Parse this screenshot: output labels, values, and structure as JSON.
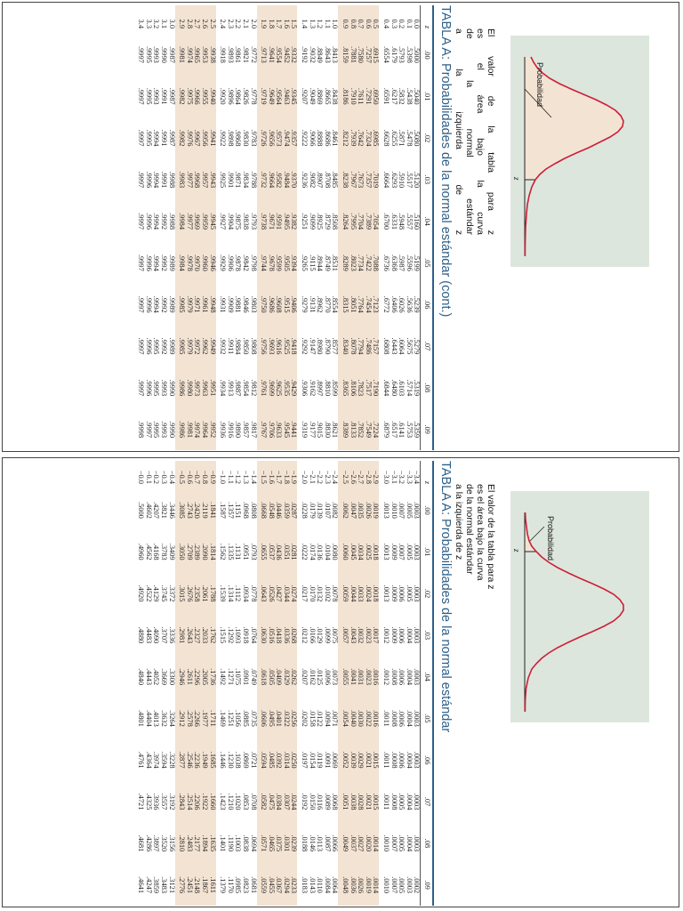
{
  "left": {
    "title_prefix": "TABLA A:",
    "title_main": "Probabilidades de la normal estándar",
    "desc": [
      "El valor de la tabla para z",
      "es el área bajo la curva",
      "de la normal estándar",
      "a la izquierda de z"
    ],
    "graph_prob_label": "Probabilidad",
    "graph_z_label": "z",
    "header": [
      "z",
      ".00",
      ".01",
      ".02",
      ".03",
      ".04",
      ".05",
      ".06",
      ".07",
      ".08",
      ".09"
    ],
    "rows": [
      [
        "−3.4",
        ".0003",
        ".0003",
        ".0003",
        ".0003",
        ".0003",
        ".0003",
        ".0003",
        ".0003",
        ".0003",
        ".0002"
      ],
      [
        "−3.3",
        ".0005",
        ".0005",
        ".0005",
        ".0004",
        ".0004",
        ".0004",
        ".0004",
        ".0004",
        ".0004",
        ".0003"
      ],
      [
        "−3.2",
        ".0007",
        ".0007",
        ".0006",
        ".0006",
        ".0006",
        ".0006",
        ".0006",
        ".0005",
        ".0005",
        ".0005"
      ],
      [
        "−3.1",
        ".0010",
        ".0009",
        ".0009",
        ".0009",
        ".0008",
        ".0008",
        ".0008",
        ".0008",
        ".0007",
        ".0007"
      ],
      [
        "−3.0",
        ".0013",
        ".0013",
        ".0013",
        ".0012",
        ".0012",
        ".0011",
        ".0011",
        ".0011",
        ".0010",
        ".0010"
      ],
      [
        "−2.9",
        ".0019",
        ".0018",
        ".0018",
        ".0017",
        ".0016",
        ".0016",
        ".0015",
        ".0015",
        ".0014",
        ".0014"
      ],
      [
        "−2.8",
        ".0026",
        ".0025",
        ".0024",
        ".0023",
        ".0023",
        ".0022",
        ".0021",
        ".0021",
        ".0020",
        ".0019"
      ],
      [
        "−2.7",
        ".0035",
        ".0034",
        ".0033",
        ".0032",
        ".0031",
        ".0030",
        ".0029",
        ".0028",
        ".0027",
        ".0026"
      ],
      [
        "−2.6",
        ".0047",
        ".0045",
        ".0044",
        ".0043",
        ".0041",
        ".0040",
        ".0039",
        ".0038",
        ".0037",
        ".0036"
      ],
      [
        "−2.5",
        ".0062",
        ".0060",
        ".0059",
        ".0057",
        ".0055",
        ".0054",
        ".0052",
        ".0051",
        ".0049",
        ".0048"
      ],
      [
        "−2.4",
        ".0082",
        ".0080",
        ".0078",
        ".0075",
        ".0073",
        ".0071",
        ".0069",
        ".0068",
        ".0066",
        ".0064"
      ],
      [
        "−2.3",
        ".0107",
        ".0104",
        ".0102",
        ".0099",
        ".0096",
        ".0094",
        ".0091",
        ".0089",
        ".0087",
        ".0084"
      ],
      [
        "−2.2",
        ".0139",
        ".0136",
        ".0132",
        ".0129",
        ".0125",
        ".0122",
        ".0119",
        ".0116",
        ".0113",
        ".0110"
      ],
      [
        "−2.1",
        ".0179",
        ".0174",
        ".0170",
        ".0166",
        ".0162",
        ".0158",
        ".0154",
        ".0150",
        ".0146",
        ".0143"
      ],
      [
        "−2.0",
        ".0228",
        ".0222",
        ".0217",
        ".0212",
        ".0207",
        ".0202",
        ".0197",
        ".0192",
        ".0188",
        ".0183"
      ],
      [
        "−1.9",
        ".0287",
        ".0281",
        ".0274",
        ".0268",
        ".0262",
        ".0256",
        ".0250",
        ".0244",
        ".0239",
        ".0233"
      ],
      [
        "−1.8",
        ".0359",
        ".0351",
        ".0344",
        ".0336",
        ".0329",
        ".0322",
        ".0314",
        ".0307",
        ".0301",
        ".0294"
      ],
      [
        "−1.7",
        ".0446",
        ".0436",
        ".0427",
        ".0418",
        ".0409",
        ".0401",
        ".0392",
        ".0384",
        ".0375",
        ".0367"
      ],
      [
        "−1.6",
        ".0548",
        ".0537",
        ".0526",
        ".0516",
        ".0505",
        ".0495",
        ".0485",
        ".0475",
        ".0465",
        ".0455"
      ],
      [
        "−1.5",
        ".0668",
        ".0655",
        ".0643",
        ".0630",
        ".0618",
        ".0606",
        ".0594",
        ".0582",
        ".0571",
        ".0559"
      ],
      [
        "−1.4",
        ".0808",
        ".0793",
        ".0778",
        ".0764",
        ".0749",
        ".0735",
        ".0721",
        ".0708",
        ".0694",
        ".0681"
      ],
      [
        "−1.3",
        ".0968",
        ".0951",
        ".0934",
        ".0918",
        ".0901",
        ".0885",
        ".0869",
        ".0853",
        ".0838",
        ".0823"
      ],
      [
        "−1.2",
        ".1151",
        ".1131",
        ".1112",
        ".1093",
        ".1075",
        ".1056",
        ".1038",
        ".1020",
        ".1003",
        ".0985"
      ],
      [
        "−1.1",
        ".1357",
        ".1335",
        ".1314",
        ".1292",
        ".1271",
        ".1251",
        ".1230",
        ".1210",
        ".1190",
        ".1170"
      ],
      [
        "−1.0",
        ".1587",
        ".1562",
        ".1539",
        ".1515",
        ".1492",
        ".1469",
        ".1446",
        ".1423",
        ".1401",
        ".1379"
      ],
      [
        "−0.9",
        ".1841",
        ".1814",
        ".1788",
        ".1762",
        ".1736",
        ".1711",
        ".1685",
        ".1660",
        ".1635",
        ".1611"
      ],
      [
        "−0.8",
        ".2119",
        ".2090",
        ".2061",
        ".2033",
        ".2005",
        ".1977",
        ".1949",
        ".1922",
        ".1894",
        ".1867"
      ],
      [
        "−0.7",
        ".2420",
        ".2389",
        ".2358",
        ".2327",
        ".2296",
        ".2266",
        ".2236",
        ".2206",
        ".2177",
        ".2148"
      ],
      [
        "−0.6",
        ".2743",
        ".2709",
        ".2676",
        ".2643",
        ".2611",
        ".2578",
        ".2546",
        ".2514",
        ".2483",
        ".2451"
      ],
      [
        "−0.5",
        ".3085",
        ".3050",
        ".3015",
        ".2981",
        ".2946",
        ".2912",
        ".2877",
        ".2843",
        ".2810",
        ".2776"
      ],
      [
        "−0.4",
        ".3446",
        ".3409",
        ".3372",
        ".3336",
        ".3300",
        ".3264",
        ".3228",
        ".3192",
        ".3156",
        ".3121"
      ],
      [
        "−0.3",
        ".3821",
        ".3783",
        ".3745",
        ".3707",
        ".3669",
        ".3632",
        ".3594",
        ".3557",
        ".3520",
        ".3483"
      ],
      [
        "−0.2",
        ".4207",
        ".4168",
        ".4129",
        ".4090",
        ".4052",
        ".4013",
        ".3974",
        ".3936",
        ".3897",
        ".3859"
      ],
      [
        "−0.1",
        ".4602",
        ".4562",
        ".4522",
        ".4483",
        ".4443",
        ".4404",
        ".4364",
        ".4325",
        ".4286",
        ".4247"
      ],
      [
        "−0.0",
        ".5000",
        ".4960",
        ".4920",
        ".4880",
        ".4840",
        ".4801",
        ".4761",
        ".4721",
        ".4681",
        ".4641"
      ]
    ]
  },
  "right": {
    "title_prefix": "TABLA A:",
    "title_main": "Probabilidades de la normal estándar (cont.)",
    "desc": [
      "El valor de la tabla para z",
      "es el área bajo la curva",
      "de la normal estándar",
      "a la izquierda de z"
    ],
    "graph_prob_label": "Probabilidad",
    "graph_z_label": "z",
    "header": [
      "z",
      ".00",
      ".01",
      ".02",
      ".03",
      ".04",
      ".05",
      ".06",
      ".07",
      ".08",
      ".09"
    ],
    "rows": [
      [
        "0.0",
        ".5000",
        ".5040",
        ".5080",
        ".5120",
        ".5160",
        ".5199",
        ".5239",
        ".5279",
        ".5319",
        ".5359"
      ],
      [
        "0.1",
        ".5398",
        ".5438",
        ".5478",
        ".5517",
        ".5557",
        ".5596",
        ".5636",
        ".5675",
        ".5714",
        ".5753"
      ],
      [
        "0.2",
        ".5793",
        ".5832",
        ".5871",
        ".5910",
        ".5948",
        ".5987",
        ".6026",
        ".6064",
        ".6103",
        ".6141"
      ],
      [
        "0.3",
        ".6179",
        ".6217",
        ".6255",
        ".6293",
        ".6331",
        ".6368",
        ".6406",
        ".6443",
        ".6480",
        ".6517"
      ],
      [
        "0.4",
        ".6554",
        ".6591",
        ".6628",
        ".6664",
        ".6700",
        ".6736",
        ".6772",
        ".6808",
        ".6844",
        ".6879"
      ],
      [
        "0.5",
        ".6915",
        ".6950",
        ".6985",
        ".7019",
        ".7054",
        ".7088",
        ".7123",
        ".7157",
        ".7190",
        ".7224"
      ],
      [
        "0.6",
        ".7257",
        ".7291",
        ".7324",
        ".7357",
        ".7389",
        ".7422",
        ".7454",
        ".7486",
        ".7517",
        ".7549"
      ],
      [
        "0.7",
        ".7580",
        ".7611",
        ".7642",
        ".7673",
        ".7704",
        ".7734",
        ".7764",
        ".7794",
        ".7823",
        ".7852"
      ],
      [
        "0.8",
        ".7881",
        ".7910",
        ".7939",
        ".7967",
        ".7995",
        ".8023",
        ".8051",
        ".8078",
        ".8106",
        ".8133"
      ],
      [
        "0.9",
        ".8159",
        ".8186",
        ".8212",
        ".8238",
        ".8264",
        ".8289",
        ".8315",
        ".8340",
        ".8365",
        ".8389"
      ],
      [
        "1.0",
        ".8413",
        ".8438",
        ".8461",
        ".8485",
        ".8508",
        ".8531",
        ".8554",
        ".8577",
        ".8599",
        ".8621"
      ],
      [
        "1.1",
        ".8643",
        ".8665",
        ".8686",
        ".8708",
        ".8729",
        ".8749",
        ".8770",
        ".8790",
        ".8810",
        ".8830"
      ],
      [
        "1.2",
        ".8849",
        ".8869",
        ".8888",
        ".8907",
        ".8925",
        ".8944",
        ".8962",
        ".8980",
        ".8997",
        ".9015"
      ],
      [
        "1.3",
        ".9032",
        ".9049",
        ".9066",
        ".9082",
        ".9099",
        ".9115",
        ".9131",
        ".9147",
        ".9162",
        ".9177"
      ],
      [
        "1.4",
        ".9192",
        ".9207",
        ".9222",
        ".9236",
        ".9251",
        ".9265",
        ".9279",
        ".9292",
        ".9306",
        ".9319"
      ],
      [
        "1.5",
        ".9332",
        ".9345",
        ".9357",
        ".9370",
        ".9382",
        ".9394",
        ".9406",
        ".9418",
        ".9429",
        ".9441"
      ],
      [
        "1.6",
        ".9452",
        ".9463",
        ".9474",
        ".9484",
        ".9495",
        ".9505",
        ".9515",
        ".9525",
        ".9535",
        ".9545"
      ],
      [
        "1.7",
        ".9554",
        ".9564",
        ".9573",
        ".9582",
        ".9591",
        ".9599",
        ".9608",
        ".9616",
        ".9625",
        ".9633"
      ],
      [
        "1.8",
        ".9641",
        ".9649",
        ".9656",
        ".9664",
        ".9671",
        ".9678",
        ".9686",
        ".9693",
        ".9699",
        ".9706"
      ],
      [
        "1.9",
        ".9713",
        ".9719",
        ".9726",
        ".9732",
        ".9738",
        ".9744",
        ".9750",
        ".9756",
        ".9761",
        ".9767"
      ],
      [
        "2.0",
        ".9772",
        ".9778",
        ".9783",
        ".9788",
        ".9793",
        ".9798",
        ".9803",
        ".9808",
        ".9812",
        ".9817"
      ],
      [
        "2.1",
        ".9821",
        ".9826",
        ".9830",
        ".9834",
        ".9838",
        ".9842",
        ".9846",
        ".9850",
        ".9854",
        ".9857"
      ],
      [
        "2.2",
        ".9861",
        ".9864",
        ".9868",
        ".9871",
        ".9875",
        ".9878",
        ".9881",
        ".9884",
        ".9887",
        ".9890"
      ],
      [
        "2.3",
        ".9893",
        ".9896",
        ".9898",
        ".9901",
        ".9904",
        ".9906",
        ".9909",
        ".9911",
        ".9913",
        ".9916"
      ],
      [
        "2.4",
        ".9918",
        ".9920",
        ".9922",
        ".9925",
        ".9927",
        ".9929",
        ".9931",
        ".9932",
        ".9934",
        ".9936"
      ],
      [
        "2.5",
        ".9938",
        ".9940",
        ".9941",
        ".9943",
        ".9945",
        ".9946",
        ".9948",
        ".9949",
        ".9951",
        ".9952"
      ],
      [
        "2.6",
        ".9953",
        ".9955",
        ".9956",
        ".9957",
        ".9959",
        ".9960",
        ".9961",
        ".9962",
        ".9963",
        ".9964"
      ],
      [
        "2.7",
        ".9965",
        ".9966",
        ".9967",
        ".9968",
        ".9969",
        ".9970",
        ".9971",
        ".9972",
        ".9973",
        ".9974"
      ],
      [
        "2.8",
        ".9974",
        ".9975",
        ".9976",
        ".9977",
        ".9977",
        ".9978",
        ".9979",
        ".9979",
        ".9980",
        ".9981"
      ],
      [
        "2.9",
        ".9981",
        ".9982",
        ".9982",
        ".9983",
        ".9984",
        ".9984",
        ".9985",
        ".9985",
        ".9986",
        ".9986"
      ],
      [
        "3.0",
        ".9987",
        ".9987",
        ".9987",
        ".9988",
        ".9988",
        ".9989",
        ".9989",
        ".9989",
        ".9990",
        ".9990"
      ],
      [
        "3.1",
        ".9990",
        ".9991",
        ".9991",
        ".9991",
        ".9992",
        ".9992",
        ".9992",
        ".9992",
        ".9993",
        ".9993"
      ],
      [
        "3.2",
        ".9993",
        ".9993",
        ".9994",
        ".9994",
        ".9994",
        ".9994",
        ".9994",
        ".9995",
        ".9995",
        ".9995"
      ],
      [
        "3.3",
        ".9995",
        ".9995",
        ".9995",
        ".9996",
        ".9996",
        ".9996",
        ".9996",
        ".9996",
        ".9996",
        ".9997"
      ],
      [
        "3.4",
        ".9997",
        ".9997",
        ".9997",
        ".9997",
        ".9997",
        ".9997",
        ".9997",
        ".9997",
        ".9997",
        ".9998"
      ]
    ]
  },
  "colors": {
    "title_blue": "#2c5f88",
    "curve_red": "#cc1f3a",
    "area_peach": "#f3e3d3",
    "graph_bg": "#dde6dc"
  }
}
